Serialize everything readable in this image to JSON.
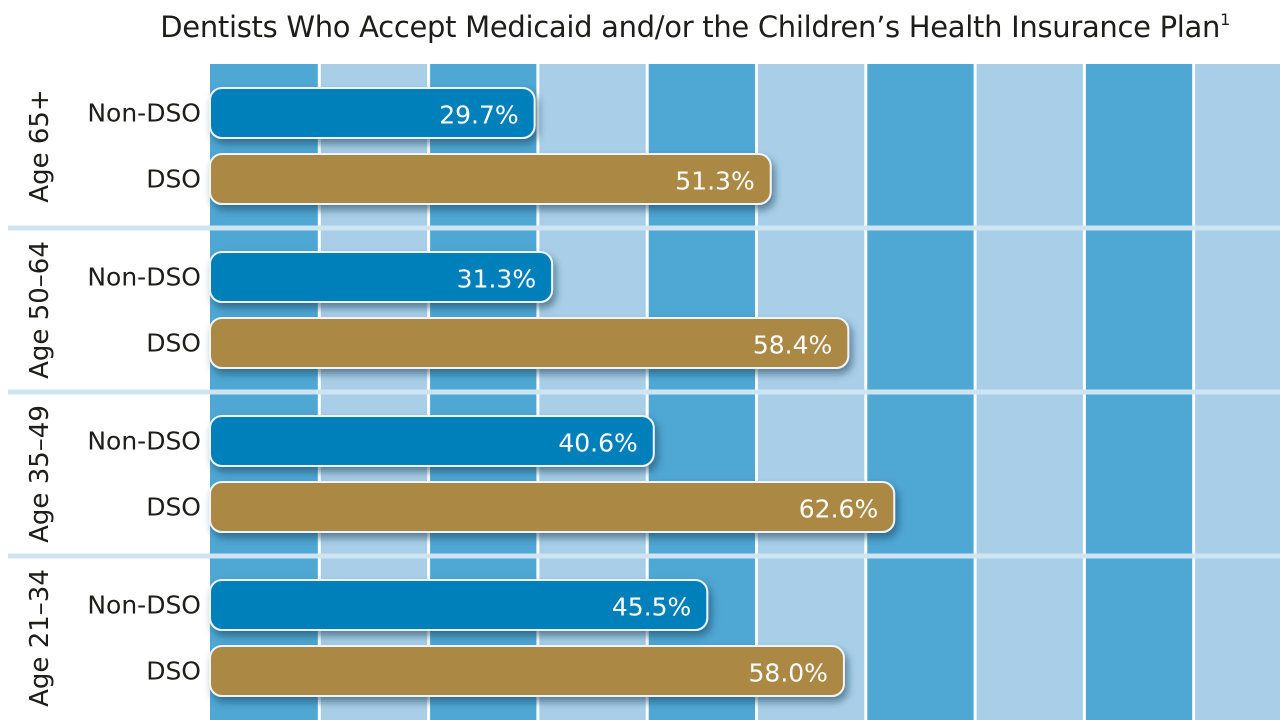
{
  "chart_data": {
    "type": "bar",
    "orientation": "horizontal",
    "title": "Dentists Who Accept Medicaid and/or the Children’s Health Insurance Plan",
    "title_footnote": "1",
    "xlabel": "",
    "ylabel": "",
    "xlim": [
      0,
      98
    ],
    "x_band_interval": 20,
    "grid": true,
    "legend": "none",
    "categories": [
      "Age 65+",
      "Age 50–64",
      "Age 35–49",
      "Age 21–34"
    ],
    "series": [
      {
        "name": "Non-DSO",
        "color": "#0580bb",
        "values": [
          29.7,
          31.3,
          40.6,
          45.5
        ]
      },
      {
        "name": "DSO",
        "color": "#ab8945",
        "values": [
          51.3,
          58.4,
          62.6,
          58.0
        ]
      }
    ],
    "value_format": "{v}%",
    "band_colors": {
      "dark": "#4fa7d3",
      "light": "#a9cfe8"
    }
  }
}
